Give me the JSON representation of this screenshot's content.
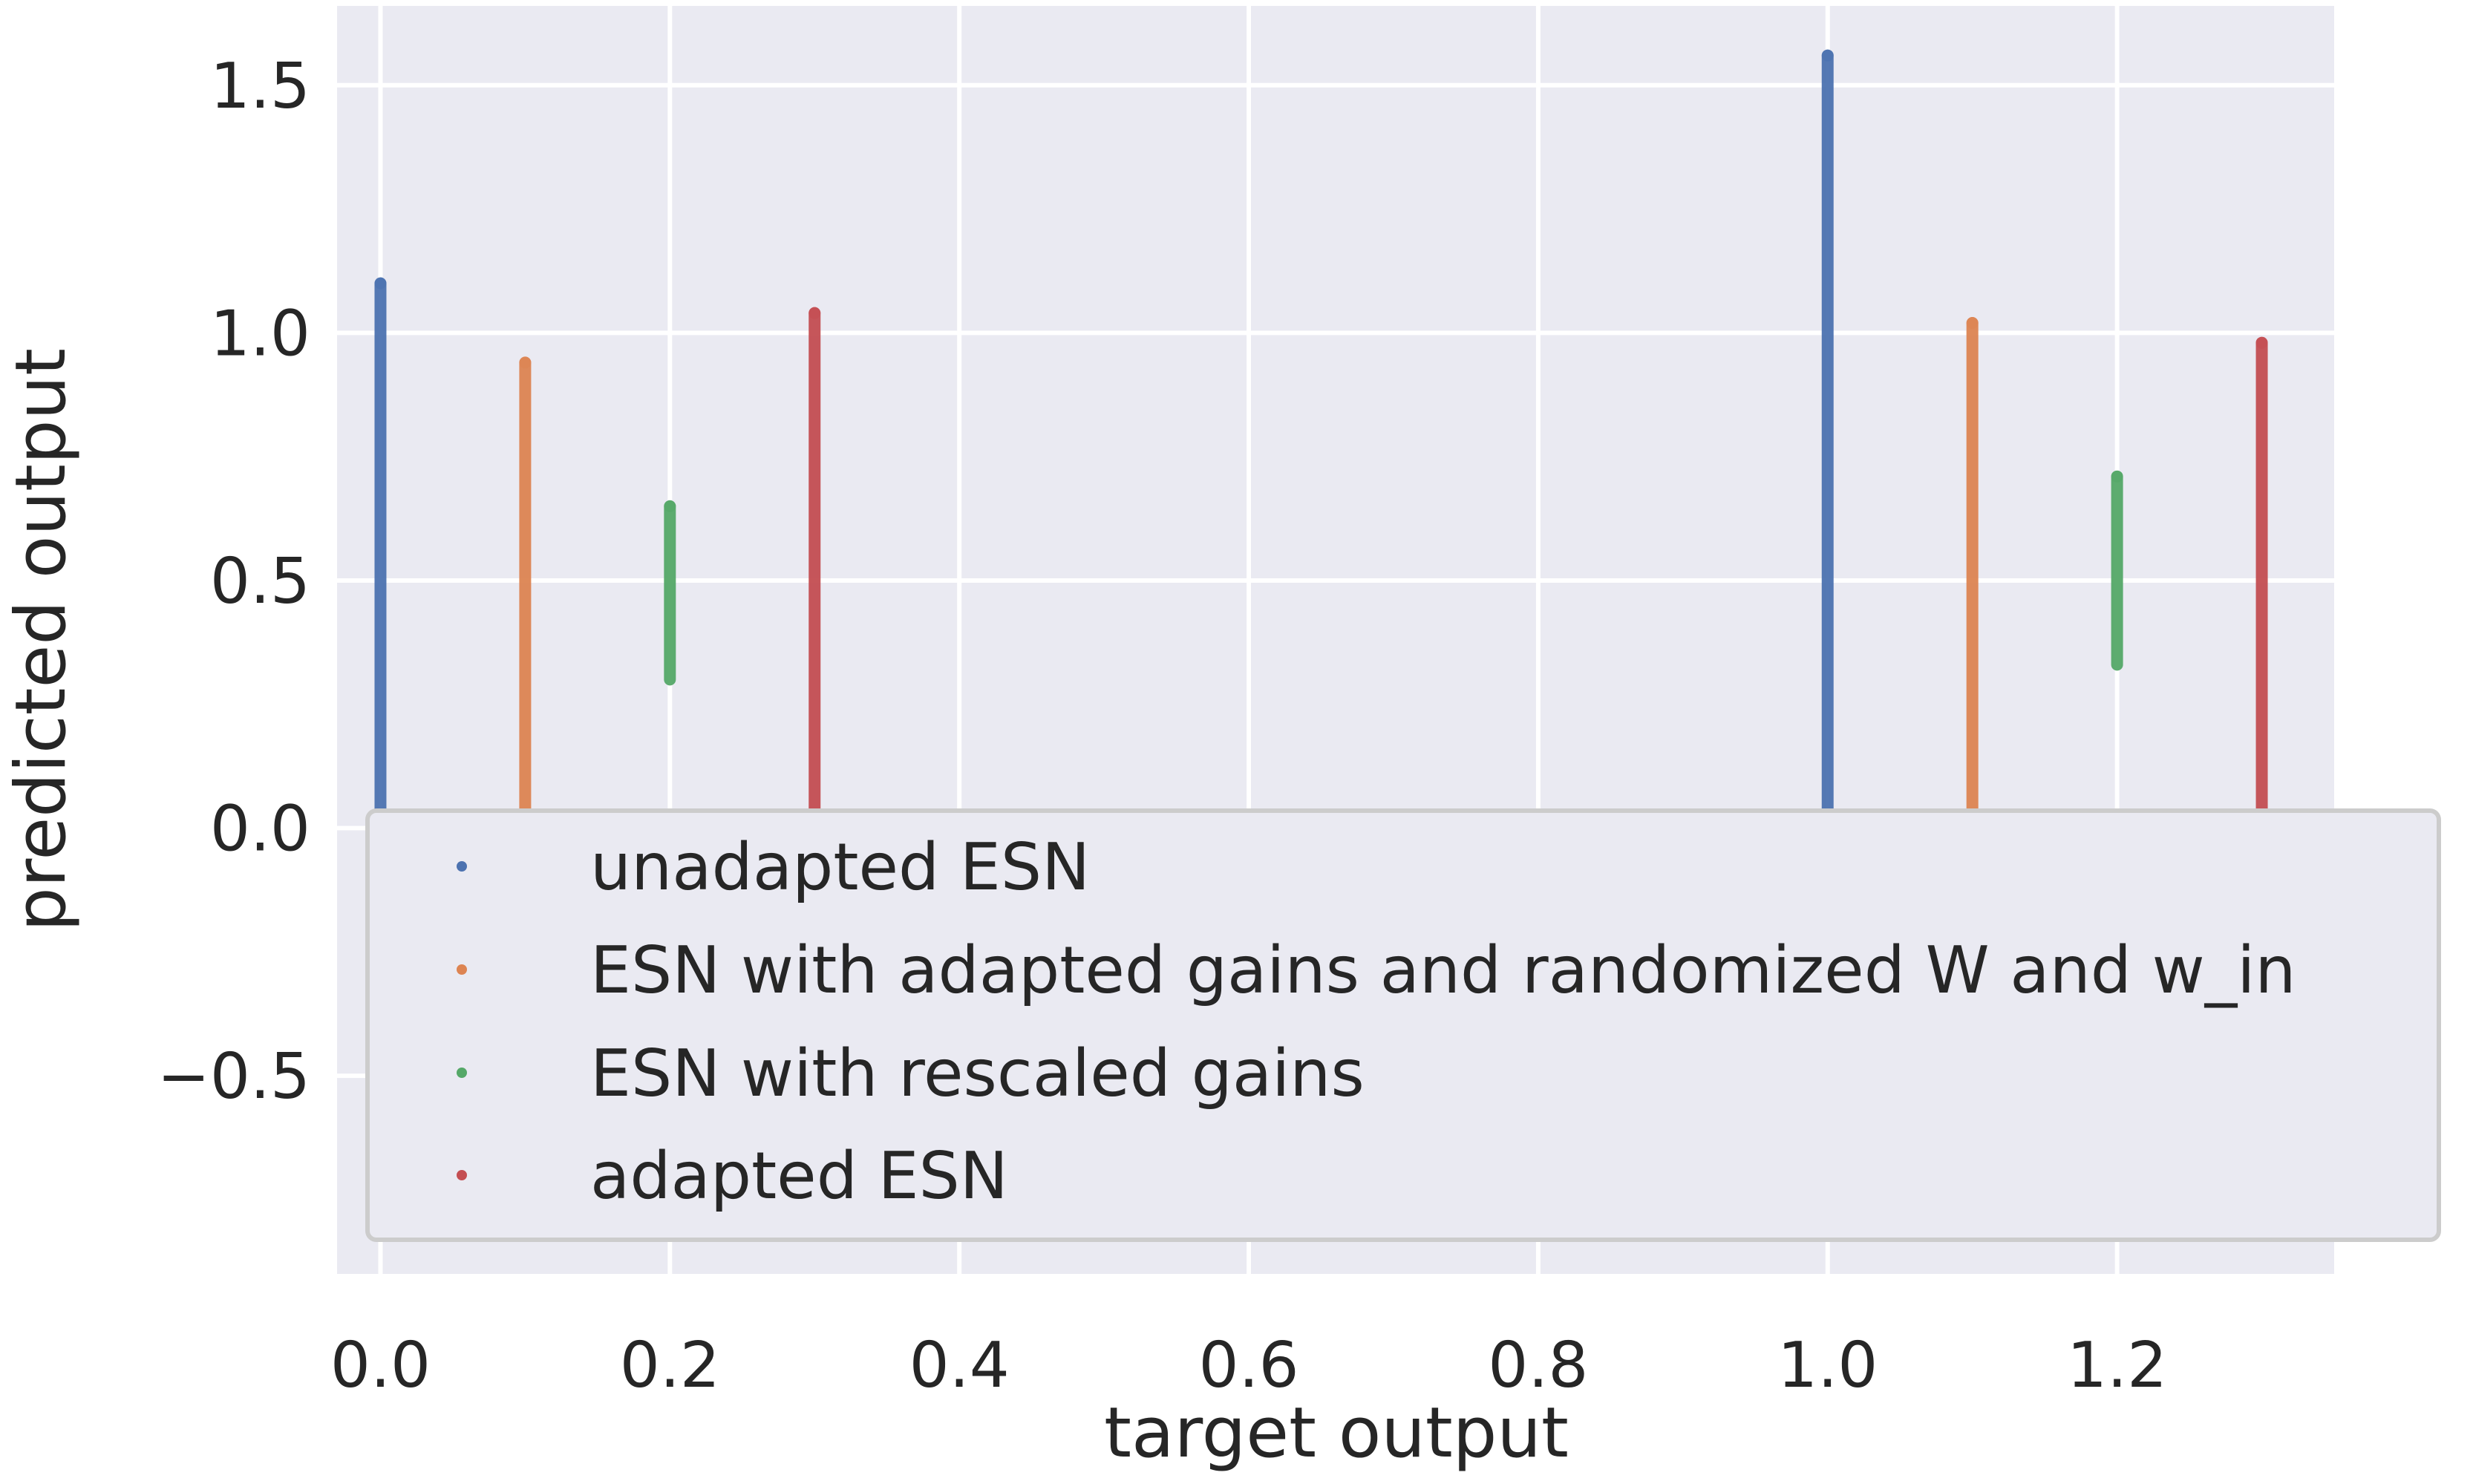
{
  "chart_data": {
    "type": "scatter",
    "title": "",
    "xlabel": "target output",
    "ylabel": "predicted output",
    "xlim": [
      -0.03,
      1.35
    ],
    "ylim": [
      -0.9,
      1.66
    ],
    "xticks": [
      0.0,
      0.2,
      0.4,
      0.6,
      0.8,
      1.0,
      1.2
    ],
    "xtick_labels": [
      "0.0",
      "0.2",
      "0.4",
      "0.6",
      "0.8",
      "1.0",
      "1.2"
    ],
    "yticks": [
      -0.5,
      0.0,
      0.5,
      1.0,
      1.5
    ],
    "ytick_labels": [
      "−0.5",
      "0.0",
      "0.5",
      "1.0",
      "1.5"
    ],
    "grid": true,
    "legend_position": "lower-right",
    "series": [
      {
        "name": "unadapted ESN",
        "color": "#4c72b0",
        "points": [
          {
            "x": 0.0,
            "y_min": -0.05,
            "y_max": 1.1
          },
          {
            "x": 1.0,
            "y_min": -0.05,
            "y_max": 1.56
          }
        ]
      },
      {
        "name": "ESN with adapted gains and randomized W and w_in",
        "color": "#dd8452",
        "points": [
          {
            "x": 0.1,
            "y_min": -0.05,
            "y_max": 0.94
          },
          {
            "x": 1.1,
            "y_min": -0.05,
            "y_max": 1.02
          }
        ]
      },
      {
        "name": "ESN with rescaled gains",
        "color": "#55a868",
        "points": [
          {
            "x": 0.2,
            "y_min": 0.3,
            "y_max": 0.65
          },
          {
            "x": 1.2,
            "y_min": 0.33,
            "y_max": 0.71
          }
        ]
      },
      {
        "name": "adapted ESN",
        "color": "#c44e52",
        "points": [
          {
            "x": 0.3,
            "y_min": -0.05,
            "y_max": 1.04
          },
          {
            "x": 1.3,
            "y_min": -0.05,
            "y_max": 0.98
          }
        ]
      }
    ]
  }
}
